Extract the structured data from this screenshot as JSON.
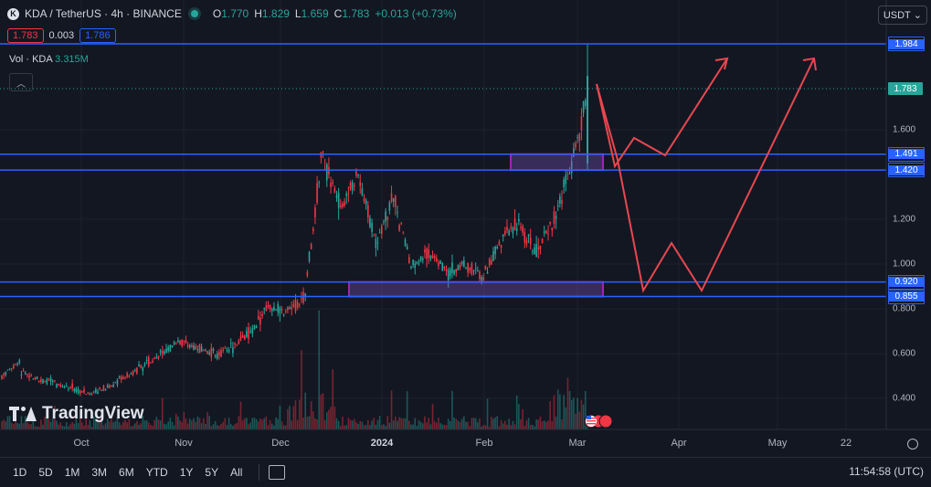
{
  "header": {
    "symbol_icon": "K",
    "symbol": "KDA / TetherUS · 4h · BINANCE",
    "status_icon": "market-open-icon",
    "ohlc": [
      {
        "k": "O",
        "v": "1.770"
      },
      {
        "k": "H",
        "v": "1.829"
      },
      {
        "k": "L",
        "v": "1.659"
      },
      {
        "k": "C",
        "v": "1.783"
      }
    ],
    "change": "+0.013 (+0.73%)"
  },
  "quote": {
    "bid": "1.783",
    "spread": "0.003",
    "ask": "1.786"
  },
  "volume": {
    "label": "Vol · KDA",
    "value": "3.315M"
  },
  "currency_selector": {
    "label": "USDT",
    "icon": "chevron-down-icon"
  },
  "logo_text": "TradingView",
  "timeframes": [
    "1D",
    "5D",
    "1M",
    "3M",
    "6M",
    "YTD",
    "1Y",
    "5Y",
    "All"
  ],
  "clock": "11:54:58 (UTC)",
  "colors": {
    "bg": "#131722",
    "up": "#26a69a",
    "down": "#f23645",
    "line_blue": "#2962ff",
    "zone": "#7e57c2",
    "arrow": "#e8474f"
  },
  "chart_data": {
    "type": "candlestick",
    "x_ticks": [
      "Oct",
      "Nov",
      "Dec",
      "2024",
      "Feb",
      "Mar",
      "Apr",
      "May",
      "22"
    ],
    "y_ticks": [
      "1.600",
      "1.200",
      "1.000",
      "0.800",
      "0.600",
      "0.400"
    ],
    "ylim": [
      0.25,
      2.0
    ],
    "last_price": "1.783",
    "horizontal_lines": [
      {
        "value": 1.984,
        "label": "1.984"
      },
      {
        "value": 1.491,
        "label": "1.491"
      },
      {
        "value": 1.42,
        "label": "1.420"
      },
      {
        "value": 0.92,
        "label": "0.920"
      },
      {
        "value": 0.855,
        "label": "0.855"
      }
    ],
    "zones": [
      {
        "from": 1.42,
        "to": 1.491
      },
      {
        "from": 0.855,
        "to": 0.92
      }
    ],
    "price_path": [
      [
        0.5,
        0.56
      ],
      [
        0.52,
        0.49
      ],
      [
        0.48,
        0.47
      ],
      [
        0.46,
        0.45
      ],
      [
        0.44,
        0.42
      ],
      [
        0.43,
        0.45
      ],
      [
        0.45,
        0.5
      ],
      [
        0.5,
        0.55
      ],
      [
        0.55,
        0.6
      ],
      [
        0.6,
        0.66
      ],
      [
        0.65,
        0.62
      ],
      [
        0.62,
        0.6
      ],
      [
        0.6,
        0.63
      ],
      [
        0.63,
        0.7
      ],
      [
        0.7,
        0.82
      ],
      [
        0.82,
        0.78
      ],
      [
        0.78,
        0.85
      ],
      [
        0.85,
        1.5
      ],
      [
        1.5,
        1.25
      ],
      [
        1.25,
        1.4
      ],
      [
        1.4,
        1.1
      ],
      [
        1.1,
        1.3
      ],
      [
        1.3,
        0.98
      ],
      [
        0.98,
        1.05
      ],
      [
        1.05,
        0.96
      ],
      [
        0.96,
        1.0
      ],
      [
        1.0,
        0.94
      ],
      [
        0.94,
        1.1
      ],
      [
        1.1,
        1.18
      ],
      [
        1.18,
        1.05
      ],
      [
        1.05,
        1.2
      ],
      [
        1.2,
        1.45
      ],
      [
        1.45,
        1.78
      ]
    ]
  }
}
